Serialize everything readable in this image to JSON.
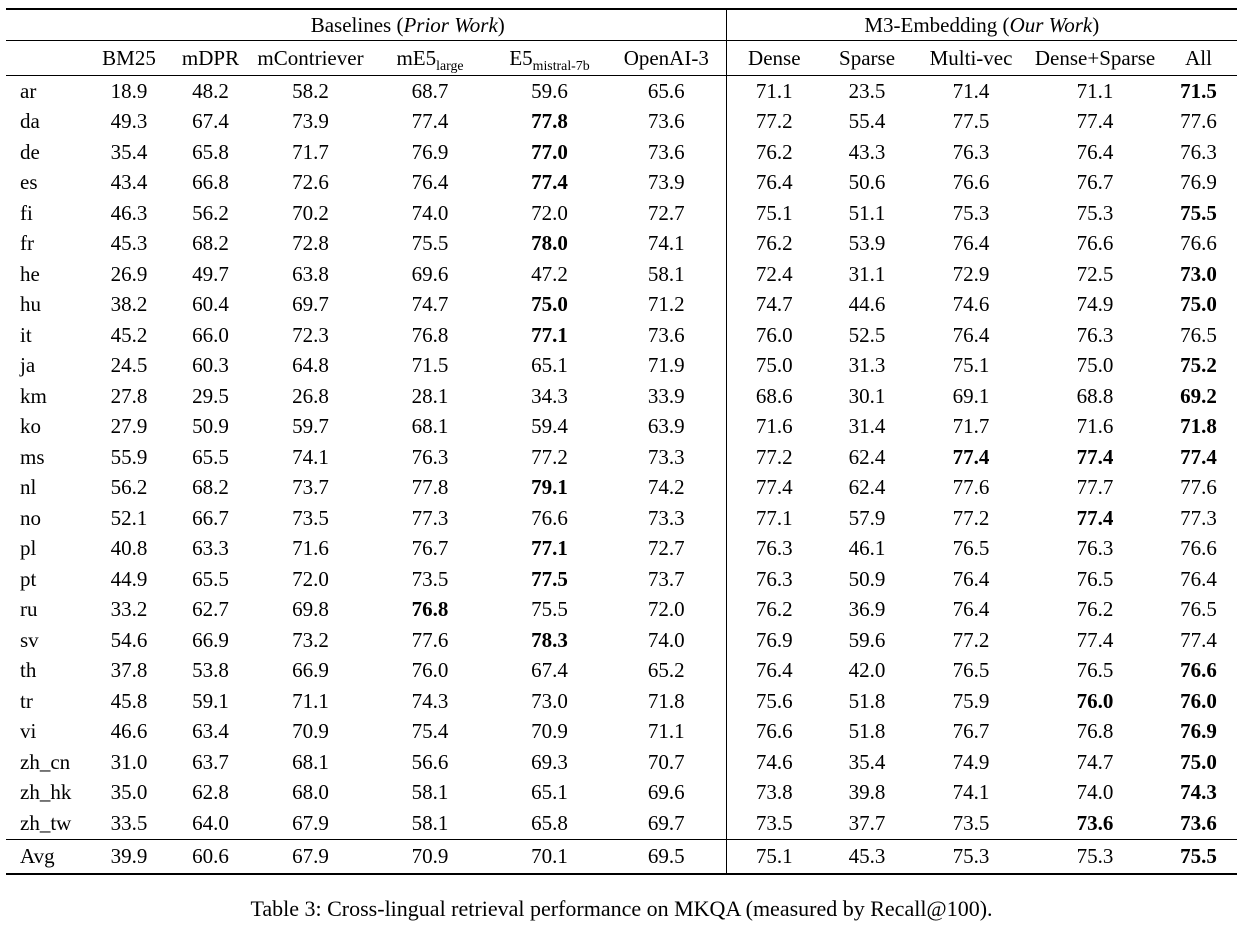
{
  "caption": "Table 3: Cross-lingual retrieval performance on MKQA (measured by Recall@100).",
  "table": {
    "groups": {
      "baselines": {
        "prefix": "Baselines (",
        "italic": "Prior Work",
        "suffix": ")"
      },
      "m3": {
        "prefix": "M3-Embedding (",
        "italic": "Our Work",
        "suffix": ")"
      }
    },
    "columns": {
      "left": [
        {
          "label": "BM25"
        },
        {
          "label": "mDPR"
        },
        {
          "label": "mContriever"
        },
        {
          "label": "mE5",
          "sub": "large"
        },
        {
          "label": "E5",
          "sub": "mistral-7b"
        },
        {
          "label": "OpenAI-3"
        }
      ],
      "right": [
        {
          "label": "Dense"
        },
        {
          "label": "Sparse"
        },
        {
          "label": "Multi-vec"
        },
        {
          "label": "Dense+Sparse"
        },
        {
          "label": "All"
        }
      ]
    },
    "rows": [
      {
        "lang": "ar",
        "left": [
          "18.9",
          "48.2",
          "58.2",
          "68.7",
          "59.6",
          "65.6"
        ],
        "bold_left": [],
        "right": [
          "71.1",
          "23.5",
          "71.4",
          "71.1",
          "71.5"
        ],
        "bold_right": [
          4
        ]
      },
      {
        "lang": "da",
        "left": [
          "49.3",
          "67.4",
          "73.9",
          "77.4",
          "77.8",
          "73.6"
        ],
        "bold_left": [
          4
        ],
        "right": [
          "77.2",
          "55.4",
          "77.5",
          "77.4",
          "77.6"
        ],
        "bold_right": []
      },
      {
        "lang": "de",
        "left": [
          "35.4",
          "65.8",
          "71.7",
          "76.9",
          "77.0",
          "73.6"
        ],
        "bold_left": [
          4
        ],
        "right": [
          "76.2",
          "43.3",
          "76.3",
          "76.4",
          "76.3"
        ],
        "bold_right": []
      },
      {
        "lang": "es",
        "left": [
          "43.4",
          "66.8",
          "72.6",
          "76.4",
          "77.4",
          "73.9"
        ],
        "bold_left": [
          4
        ],
        "right": [
          "76.4",
          "50.6",
          "76.6",
          "76.7",
          "76.9"
        ],
        "bold_right": []
      },
      {
        "lang": "fi",
        "left": [
          "46.3",
          "56.2",
          "70.2",
          "74.0",
          "72.0",
          "72.7"
        ],
        "bold_left": [],
        "right": [
          "75.1",
          "51.1",
          "75.3",
          "75.3",
          "75.5"
        ],
        "bold_right": [
          4
        ]
      },
      {
        "lang": "fr",
        "left": [
          "45.3",
          "68.2",
          "72.8",
          "75.5",
          "78.0",
          "74.1"
        ],
        "bold_left": [
          4
        ],
        "right": [
          "76.2",
          "53.9",
          "76.4",
          "76.6",
          "76.6"
        ],
        "bold_right": []
      },
      {
        "lang": "he",
        "left": [
          "26.9",
          "49.7",
          "63.8",
          "69.6",
          "47.2",
          "58.1"
        ],
        "bold_left": [],
        "right": [
          "72.4",
          "31.1",
          "72.9",
          "72.5",
          "73.0"
        ],
        "bold_right": [
          4
        ]
      },
      {
        "lang": "hu",
        "left": [
          "38.2",
          "60.4",
          "69.7",
          "74.7",
          "75.0",
          "71.2"
        ],
        "bold_left": [
          4
        ],
        "right": [
          "74.7",
          "44.6",
          "74.6",
          "74.9",
          "75.0"
        ],
        "bold_right": [
          4
        ]
      },
      {
        "lang": "it",
        "left": [
          "45.2",
          "66.0",
          "72.3",
          "76.8",
          "77.1",
          "73.6"
        ],
        "bold_left": [
          4
        ],
        "right": [
          "76.0",
          "52.5",
          "76.4",
          "76.3",
          "76.5"
        ],
        "bold_right": []
      },
      {
        "lang": "ja",
        "left": [
          "24.5",
          "60.3",
          "64.8",
          "71.5",
          "65.1",
          "71.9"
        ],
        "bold_left": [],
        "right": [
          "75.0",
          "31.3",
          "75.1",
          "75.0",
          "75.2"
        ],
        "bold_right": [
          4
        ]
      },
      {
        "lang": "km",
        "left": [
          "27.8",
          "29.5",
          "26.8",
          "28.1",
          "34.3",
          "33.9"
        ],
        "bold_left": [],
        "right": [
          "68.6",
          "30.1",
          "69.1",
          "68.8",
          "69.2"
        ],
        "bold_right": [
          4
        ]
      },
      {
        "lang": "ko",
        "left": [
          "27.9",
          "50.9",
          "59.7",
          "68.1",
          "59.4",
          "63.9"
        ],
        "bold_left": [],
        "right": [
          "71.6",
          "31.4",
          "71.7",
          "71.6",
          "71.8"
        ],
        "bold_right": [
          4
        ]
      },
      {
        "lang": "ms",
        "left": [
          "55.9",
          "65.5",
          "74.1",
          "76.3",
          "77.2",
          "73.3"
        ],
        "bold_left": [],
        "right": [
          "77.2",
          "62.4",
          "77.4",
          "77.4",
          "77.4"
        ],
        "bold_right": [
          2,
          3,
          4
        ]
      },
      {
        "lang": "nl",
        "left": [
          "56.2",
          "68.2",
          "73.7",
          "77.8",
          "79.1",
          "74.2"
        ],
        "bold_left": [
          4
        ],
        "right": [
          "77.4",
          "62.4",
          "77.6",
          "77.7",
          "77.6"
        ],
        "bold_right": []
      },
      {
        "lang": "no",
        "left": [
          "52.1",
          "66.7",
          "73.5",
          "77.3",
          "76.6",
          "73.3"
        ],
        "bold_left": [],
        "right": [
          "77.1",
          "57.9",
          "77.2",
          "77.4",
          "77.3"
        ],
        "bold_right": [
          3
        ]
      },
      {
        "lang": "pl",
        "left": [
          "40.8",
          "63.3",
          "71.6",
          "76.7",
          "77.1",
          "72.7"
        ],
        "bold_left": [
          4
        ],
        "right": [
          "76.3",
          "46.1",
          "76.5",
          "76.3",
          "76.6"
        ],
        "bold_right": []
      },
      {
        "lang": "pt",
        "left": [
          "44.9",
          "65.5",
          "72.0",
          "73.5",
          "77.5",
          "73.7"
        ],
        "bold_left": [
          4
        ],
        "right": [
          "76.3",
          "50.9",
          "76.4",
          "76.5",
          "76.4"
        ],
        "bold_right": []
      },
      {
        "lang": "ru",
        "left": [
          "33.2",
          "62.7",
          "69.8",
          "76.8",
          "75.5",
          "72.0"
        ],
        "bold_left": [
          3
        ],
        "right": [
          "76.2",
          "36.9",
          "76.4",
          "76.2",
          "76.5"
        ],
        "bold_right": []
      },
      {
        "lang": "sv",
        "left": [
          "54.6",
          "66.9",
          "73.2",
          "77.6",
          "78.3",
          "74.0"
        ],
        "bold_left": [
          4
        ],
        "right": [
          "76.9",
          "59.6",
          "77.2",
          "77.4",
          "77.4"
        ],
        "bold_right": []
      },
      {
        "lang": "th",
        "left": [
          "37.8",
          "53.8",
          "66.9",
          "76.0",
          "67.4",
          "65.2"
        ],
        "bold_left": [],
        "right": [
          "76.4",
          "42.0",
          "76.5",
          "76.5",
          "76.6"
        ],
        "bold_right": [
          4
        ]
      },
      {
        "lang": "tr",
        "left": [
          "45.8",
          "59.1",
          "71.1",
          "74.3",
          "73.0",
          "71.8"
        ],
        "bold_left": [],
        "right": [
          "75.6",
          "51.8",
          "75.9",
          "76.0",
          "76.0"
        ],
        "bold_right": [
          3,
          4
        ]
      },
      {
        "lang": "vi",
        "left": [
          "46.6",
          "63.4",
          "70.9",
          "75.4",
          "70.9",
          "71.1"
        ],
        "bold_left": [],
        "right": [
          "76.6",
          "51.8",
          "76.7",
          "76.8",
          "76.9"
        ],
        "bold_right": [
          4
        ]
      },
      {
        "lang": "zh_cn",
        "left": [
          "31.0",
          "63.7",
          "68.1",
          "56.6",
          "69.3",
          "70.7"
        ],
        "bold_left": [],
        "right": [
          "74.6",
          "35.4",
          "74.9",
          "74.7",
          "75.0"
        ],
        "bold_right": [
          4
        ]
      },
      {
        "lang": "zh_hk",
        "left": [
          "35.0",
          "62.8",
          "68.0",
          "58.1",
          "65.1",
          "69.6"
        ],
        "bold_left": [],
        "right": [
          "73.8",
          "39.8",
          "74.1",
          "74.0",
          "74.3"
        ],
        "bold_right": [
          4
        ]
      },
      {
        "lang": "zh_tw",
        "left": [
          "33.5",
          "64.0",
          "67.9",
          "58.1",
          "65.8",
          "69.7"
        ],
        "bold_left": [],
        "right": [
          "73.5",
          "37.7",
          "73.5",
          "73.6",
          "73.6"
        ],
        "bold_right": [
          3,
          4
        ]
      }
    ],
    "avg_row": {
      "lang": "Avg",
      "left": [
        "39.9",
        "60.6",
        "67.9",
        "70.9",
        "70.1",
        "69.5"
      ],
      "bold_left": [],
      "right": [
        "75.1",
        "45.3",
        "75.3",
        "75.3",
        "75.5"
      ],
      "bold_right": [
        4
      ]
    }
  }
}
